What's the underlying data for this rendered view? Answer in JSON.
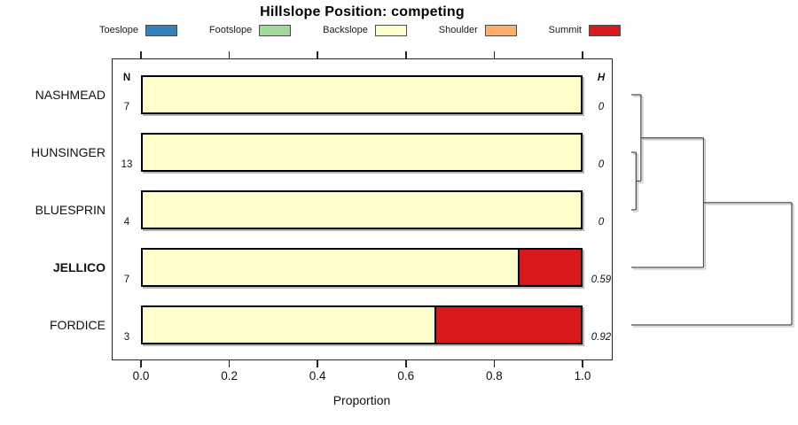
{
  "title": "Hillslope Position: competing",
  "legend": {
    "items": [
      {
        "label": "Toeslope",
        "color": "#3182bd"
      },
      {
        "label": "Footslope",
        "color": "#a1d99b"
      },
      {
        "label": "Backslope",
        "color": "#ffffcc"
      },
      {
        "label": "Shoulder",
        "color": "#fdae6b"
      },
      {
        "label": "Summit",
        "color": "#d7191c"
      }
    ]
  },
  "columns": {
    "n_header": "N",
    "h_header": "H"
  },
  "axis": {
    "xlabel": "Proportion",
    "tick_labels": [
      "0.0",
      "0.2",
      "0.4",
      "0.6",
      "0.8",
      "1.0"
    ],
    "tick_values": [
      0,
      0.2,
      0.4,
      0.6,
      0.8,
      1.0
    ]
  },
  "chart_data": {
    "type": "bar",
    "orientation": "horizontal_stacked",
    "title": "Hillslope Position: competing",
    "xlabel": "Proportion",
    "xlim": [
      0,
      1
    ],
    "legend_position": "top",
    "grid": false,
    "categories": [
      "Toeslope",
      "Footslope",
      "Backslope",
      "Shoulder",
      "Summit"
    ],
    "category_colors": {
      "Toeslope": "#3182bd",
      "Footslope": "#a1d99b",
      "Backslope": "#ffffcc",
      "Shoulder": "#fdae6b",
      "Summit": "#d7191c"
    },
    "rows": [
      {
        "label": "NASHMEAD",
        "n": "7",
        "h": "0",
        "emphasis": false,
        "segments": [
          {
            "category": "Backslope",
            "value": 1.0
          }
        ]
      },
      {
        "label": "HUNSINGER",
        "n": "13",
        "h": "0",
        "emphasis": false,
        "segments": [
          {
            "category": "Backslope",
            "value": 1.0
          }
        ]
      },
      {
        "label": "BLUESPRIN",
        "n": "4",
        "h": "0",
        "emphasis": false,
        "segments": [
          {
            "category": "Backslope",
            "value": 1.0
          }
        ]
      },
      {
        "label": "JELLICO",
        "n": "7",
        "h": "0.59",
        "emphasis": true,
        "segments": [
          {
            "category": "Backslope",
            "value": 0.857
          },
          {
            "category": "Summit",
            "value": 0.143
          }
        ]
      },
      {
        "label": "FORDICE",
        "n": "3",
        "h": "0.92",
        "emphasis": false,
        "segments": [
          {
            "category": "Backslope",
            "value": 0.667
          },
          {
            "category": "Summit",
            "value": 0.333
          }
        ]
      }
    ],
    "dendrogram": {
      "position": "right",
      "leaves": [
        "NASHMEAD",
        "HUNSINGER",
        "BLUESPRIN",
        "JELLICO",
        "FORDICE"
      ],
      "merges": [
        {
          "a": {
            "leaf": 1
          },
          "b": {
            "leaf": 2
          },
          "height": 0.03
        },
        {
          "a": {
            "leaf": 0
          },
          "b": {
            "node": 0
          },
          "height": 0.06
        },
        {
          "a": {
            "node": 1
          },
          "b": {
            "leaf": 3
          },
          "height": 0.45
        },
        {
          "a": {
            "node": 2
          },
          "b": {
            "leaf": 4
          },
          "height": 1.0
        }
      ]
    }
  }
}
